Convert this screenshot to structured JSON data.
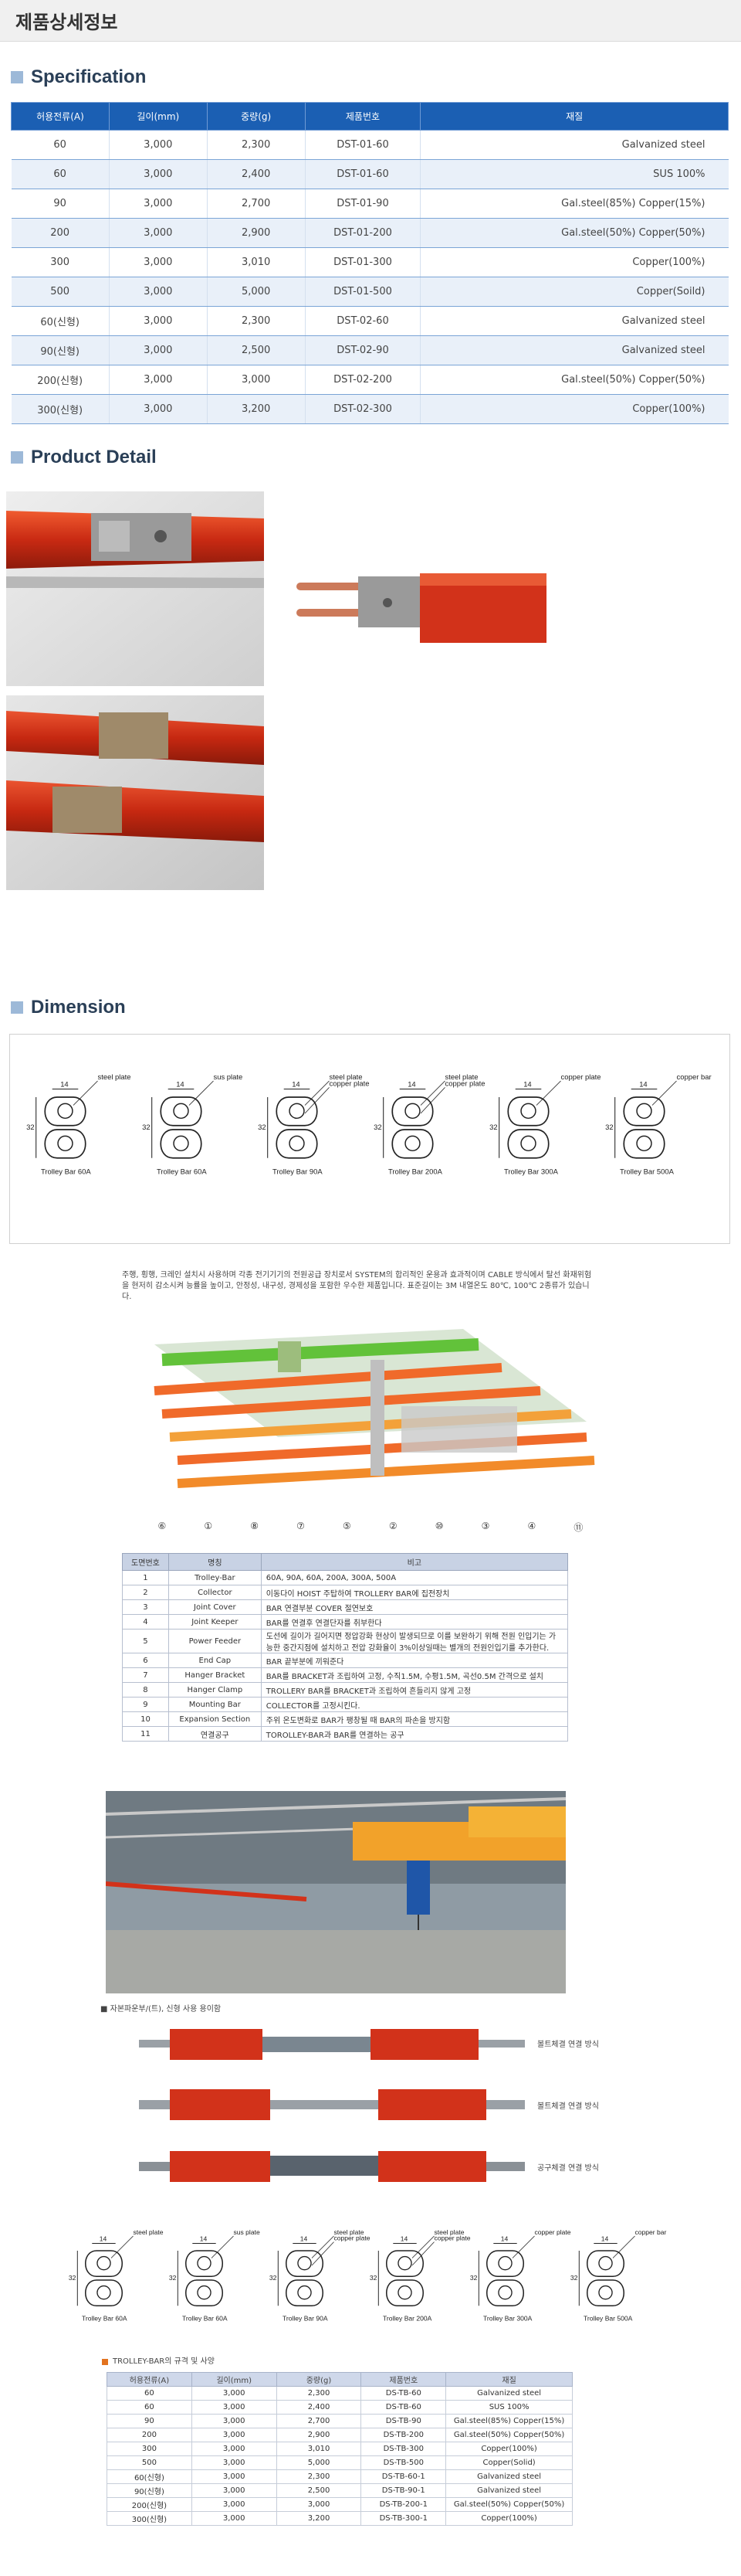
{
  "page_title": "제품상세정보",
  "sections": {
    "specification": "Specification",
    "product_detail": "Product Detail",
    "dimension": "Dimension"
  },
  "spec_table": {
    "headers": [
      "허용전류(A)",
      "길이(mm)",
      "중량(g)",
      "제품번호",
      "재질"
    ],
    "rows": [
      [
        "60",
        "3,000",
        "2,300",
        "DST-01-60",
        "Galvanized steel"
      ],
      [
        "60",
        "3,000",
        "2,400",
        "DST-01-60",
        "SUS 100%"
      ],
      [
        "90",
        "3,000",
        "2,700",
        "DST-01-90",
        "Gal.steel(85%) Copper(15%)"
      ],
      [
        "200",
        "3,000",
        "2,900",
        "DST-01-200",
        "Gal.steel(50%) Copper(50%)"
      ],
      [
        "300",
        "3,000",
        "3,010",
        "DST-01-300",
        "Copper(100%)"
      ],
      [
        "500",
        "3,000",
        "5,000",
        "DST-01-500",
        "Copper(Soild)"
      ],
      [
        "60(신형)",
        "3,000",
        "2,300",
        "DST-02-60",
        "Galvanized steel"
      ],
      [
        "90(신형)",
        "3,000",
        "2,500",
        "DST-02-90",
        "Galvanized steel"
      ],
      [
        "200(신형)",
        "3,000",
        "3,000",
        "DST-02-200",
        "Gal.steel(50%) Copper(50%)"
      ],
      [
        "300(신형)",
        "3,000",
        "3,200",
        "DST-02-300",
        "Copper(100%)"
      ]
    ]
  },
  "dimension_drawings": {
    "labels": [
      "Trolley Bar 60A",
      "Trolley Bar 60A",
      "Trolley Bar 90A",
      "Trolley Bar 200A",
      "Trolley Bar 300A",
      "Trolley Bar 500A"
    ],
    "callouts": [
      "steel plate",
      "sus plate",
      "steel plate",
      "copper plate",
      "steel plate",
      "copper plate",
      "copper plate",
      "copper bar"
    ],
    "dim_width": "14",
    "dim_height": "32"
  },
  "description": "주행, 횡행, 크레인 설치시 사용하며 각종 전기기기의 전원공급 장치로서 SYSTEM의 합리적인 운용과 효과적이며 CABLE 방식에서 탈선 화재위험을 현저히 감소시켜 능률을 높이고, 안정성, 내구성, 경제성을 포함한 우수한 제품입니다. 표준길이는 3M 내열온도 80℃, 100℃ 2종류가 있습니다.",
  "diagram_numbers": [
    "⑥",
    "①",
    "⑧",
    "⑦",
    "⑤",
    "②",
    "⑩",
    "③",
    "④",
    "⑪"
  ],
  "parts_table": {
    "headers": [
      "도면번호",
      "명칭",
      "비고"
    ],
    "rows": [
      [
        "1",
        "Trolley-Bar",
        "60A, 90A, 60A, 200A, 300A, 500A"
      ],
      [
        "2",
        "Collector",
        "이동다이 HOIST 주탑하여 TROLLERY BAR에 집전장치"
      ],
      [
        "3",
        "Joint Cover",
        "BAR 연결부분 COVER 절연보호"
      ],
      [
        "4",
        "Joint Keeper",
        "BAR를 연결후 연결단자를 취부한다"
      ],
      [
        "5",
        "Power Feeder",
        "도선에 길이가 길어지면 정압강화 현상이 발생되므로 이를 보완하기 위해 전원 인입기는 가능한 중간지점에 설치하고 전압 강화율이 3%이상일때는 별개의 전원인입기를 추가한다."
      ],
      [
        "6",
        "End Cap",
        "BAR 끝부분에 끼워준다"
      ],
      [
        "7",
        "Hanger Bracket",
        "BAR를 BRACKET과 조립하여 고정, 수직1.5M, 수평1.5M, 곡선0.5M 간격으로 설치"
      ],
      [
        "8",
        "Hanger Clamp",
        "TROLLERY BAR를 BRACKET과 조립하여 흔들리지 않게 고정"
      ],
      [
        "9",
        "Mounting Bar",
        "COLLECTOR를 고정시킨다."
      ],
      [
        "10",
        "Expansion Section",
        "주위 온도변화로 BAR가 팽창될 때 BAR의 파손을 방지함"
      ],
      [
        "11",
        "연결공구",
        "TOROLLEY-BAR과 BAR를 연결하는 공구"
      ]
    ]
  },
  "connection": {
    "caption": "■ 자본파운부/(트), 신형 사용 용이함",
    "labels": [
      "볼트체결 연결 방식",
      "볼트체결 연결 방식",
      "공구체결 연결 방식"
    ]
  },
  "spec2_table": {
    "title": "TROLLEY-BAR의 규격 및 사양",
    "headers": [
      "허용전류(A)",
      "길이(mm)",
      "중량(g)",
      "제품번호",
      "재질"
    ],
    "rows": [
      [
        "60",
        "3,000",
        "2,300",
        "DS-TB-60",
        "Galvanized steel"
      ],
      [
        "60",
        "3,000",
        "2,400",
        "DS-TB-60",
        "SUS 100%"
      ],
      [
        "90",
        "3,000",
        "2,700",
        "DS-TB-90",
        "Gal.steel(85%) Copper(15%)"
      ],
      [
        "200",
        "3,000",
        "2,900",
        "DS-TB-200",
        "Gal.steel(50%) Copper(50%)"
      ],
      [
        "300",
        "3,000",
        "3,010",
        "DS-TB-300",
        "Copper(100%)"
      ],
      [
        "500",
        "3,000",
        "5,000",
        "DS-TB-500",
        "Copper(Solid)"
      ],
      [
        "60(신형)",
        "3,000",
        "2,300",
        "DS-TB-60-1",
        "Galvanized steel"
      ],
      [
        "90(신형)",
        "3,000",
        "2,500",
        "DS-TB-90-1",
        "Galvanized steel"
      ],
      [
        "200(신형)",
        "3,000",
        "3,000",
        "DS-TB-200-1",
        "Gal.steel(50%) Copper(50%)"
      ],
      [
        "300(신형)",
        "3,000",
        "3,200",
        "DS-TB-300-1",
        "Copper(100%)"
      ]
    ]
  },
  "colors": {
    "header_blue": "#1b5fb3",
    "section_square": "#9db9d8",
    "trolley_red": "#d8361c",
    "crane_yellow": "#f2a22a"
  }
}
